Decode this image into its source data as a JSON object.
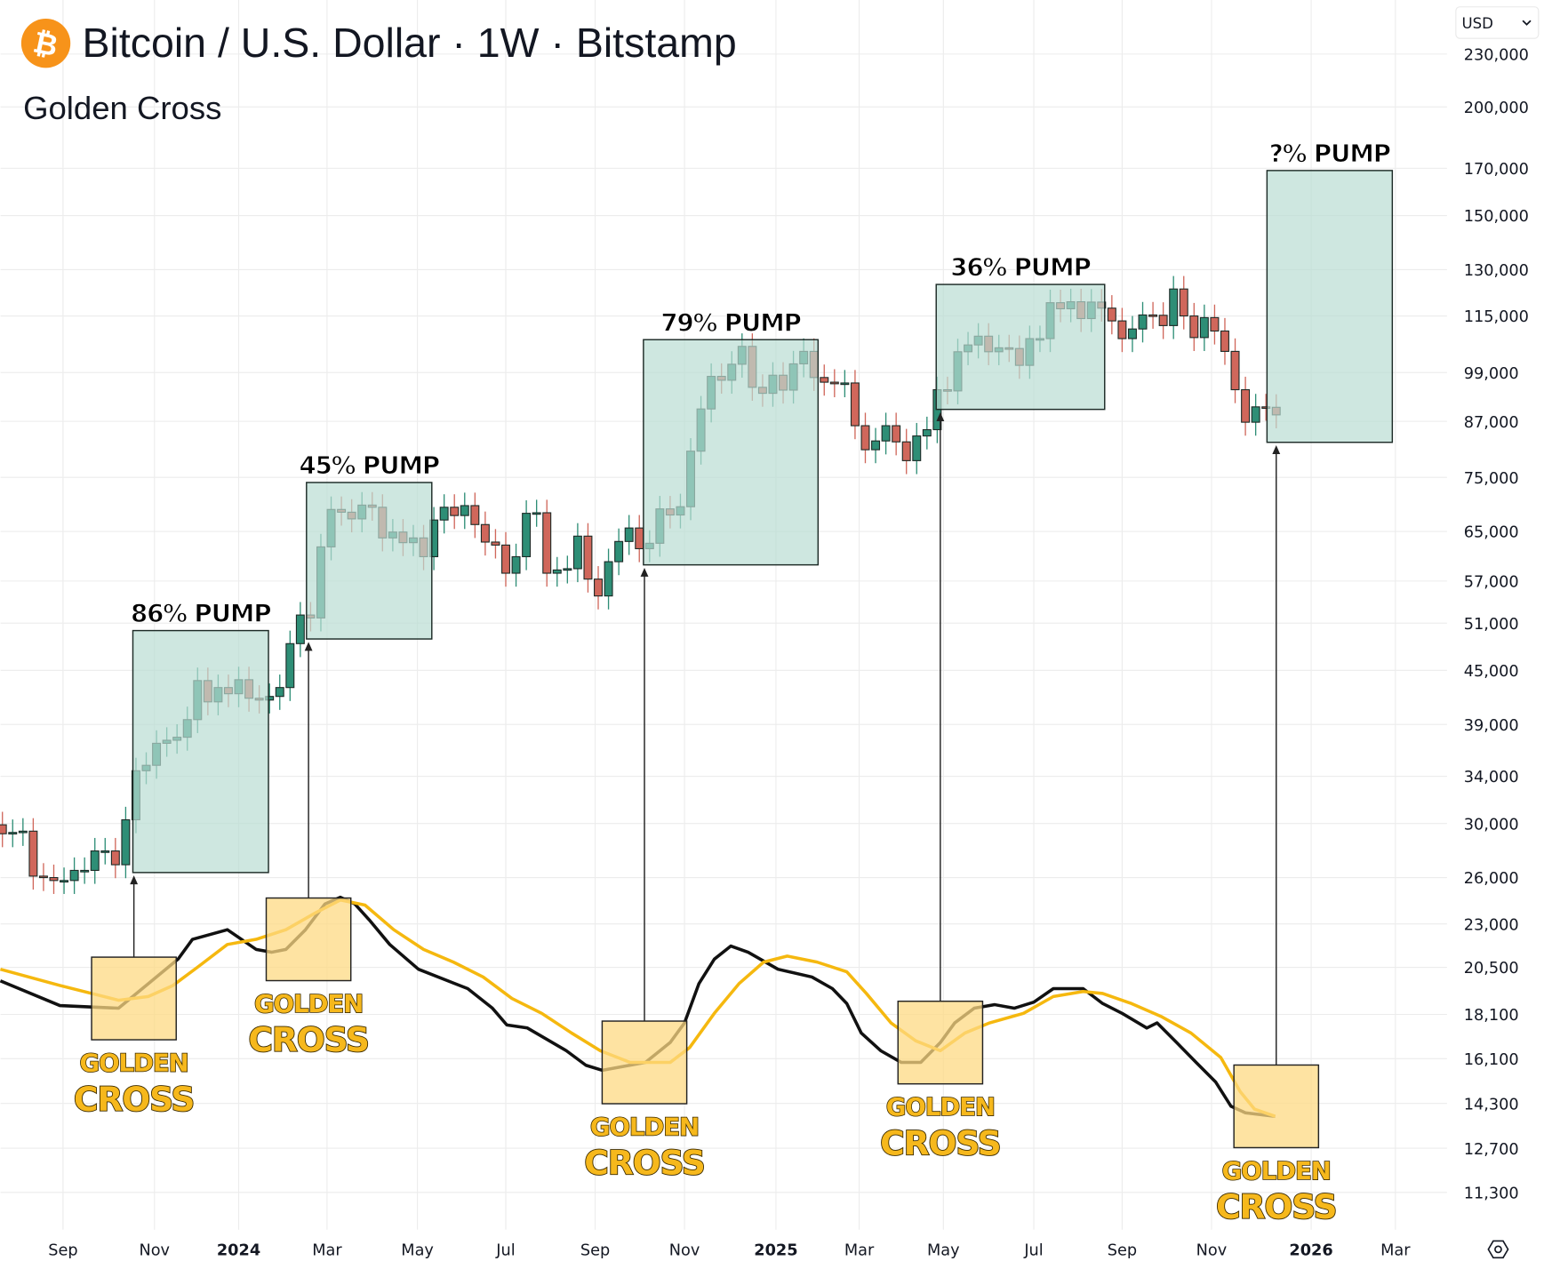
{
  "header": {
    "title": "Bitcoin / U.S. Dollar · 1W · Bitstamp",
    "subtitle": "Golden Cross",
    "logo_icon": "bitcoin-icon",
    "currency": "USD",
    "settings_icon": "gear-icon"
  },
  "colors": {
    "up": "#2e8e76",
    "down": "#d0675b",
    "ma_fast": "#111111",
    "ma_slow": "#f5b80f",
    "pump_box": "#b9ddd3",
    "cross_box": "#fdd983",
    "logo": "#f7931a"
  },
  "chart_data": {
    "type": "candlestick",
    "title": "Bitcoin / U.S. Dollar · 1W · Bitstamp",
    "subtitle": "Golden Cross",
    "y_scale": "log",
    "ylim": [
      10500,
      240000
    ],
    "x_unit": "weeks since 2024-01-01",
    "xlim": [
      -23.2,
      126
    ],
    "price_ticks": [
      "230,000",
      "200,000",
      "170,000",
      "150,000",
      "130,000",
      "115,000",
      "99,000",
      "87,000",
      "75,000",
      "65,000",
      "57,000",
      "51,000",
      "45,000",
      "39,000",
      "34,000",
      "30,000",
      "26,000",
      "23,000",
      "20,500",
      "18,100",
      "16,100",
      "14,300",
      "12,700",
      "11,300"
    ],
    "time_ticks": [
      {
        "label": "Sep",
        "week": -17.1,
        "year": false
      },
      {
        "label": "Nov",
        "week": -8.2,
        "year": false
      },
      {
        "label": "2024",
        "week": 0,
        "year": true
      },
      {
        "label": "Mar",
        "week": 8.6,
        "year": false
      },
      {
        "label": "May",
        "week": 17.4,
        "year": false
      },
      {
        "label": "Jul",
        "week": 26.0,
        "year": false
      },
      {
        "label": "Sep",
        "week": 34.7,
        "year": false
      },
      {
        "label": "Nov",
        "week": 43.4,
        "year": false
      },
      {
        "label": "2025",
        "week": 52.3,
        "year": true
      },
      {
        "label": "Mar",
        "week": 60.4,
        "year": false
      },
      {
        "label": "May",
        "week": 68.6,
        "year": false
      },
      {
        "label": "Jul",
        "week": 77.4,
        "year": false
      },
      {
        "label": "Sep",
        "week": 86.0,
        "year": false
      },
      {
        "label": "Nov",
        "week": 94.7,
        "year": false
      },
      {
        "label": "2026",
        "week": 104.4,
        "year": true
      },
      {
        "label": "Mar",
        "week": 112.6,
        "year": false
      }
    ],
    "candles": {
      "first_week": -23,
      "first_open": 29900,
      "closes": [
        29200,
        29300,
        29400,
        26100,
        26000,
        25800,
        25800,
        26500,
        26500,
        27900,
        27900,
        26900,
        30300,
        34500,
        35000,
        37100,
        37400,
        37700,
        39500,
        43800,
        41400,
        43000,
        42300,
        43900,
        41800,
        41600,
        42000,
        43000,
        48300,
        52100,
        51700,
        62400,
        68900,
        68400,
        67200,
        69700,
        69300,
        63900,
        64900,
        63100,
        63900,
        60800,
        67000,
        69300,
        67800,
        69600,
        66200,
        63200,
        62700,
        58200,
        60800,
        68200,
        68300,
        58200,
        58700,
        58900,
        64200,
        57300,
        54800,
        60000,
        63300,
        65600,
        62100,
        63000,
        69000,
        67900,
        69400,
        80400,
        89900,
        98000,
        97000,
        101200,
        106100,
        95200,
        93700,
        98300,
        94500,
        101300,
        104700,
        97700,
        96500,
        96100,
        96300,
        86000,
        80700,
        82600,
        86000,
        82400,
        78400,
        83700,
        85100,
        94600,
        94300,
        104600,
        106500,
        109000,
        104600,
        105700,
        105500,
        100900,
        108300,
        108300,
        119100,
        117200,
        119400,
        114200,
        119300,
        117400,
        113500,
        108300,
        111100,
        115300,
        115200,
        112100,
        123500,
        115000,
        108600,
        114500,
        110500,
        104700,
        94600,
        86800,
        90400,
        90300,
        88500
      ]
    },
    "series": [
      {
        "name": "Fast MA",
        "color": "#111111",
        "points": [
          [
            -23.2,
            19780
          ],
          [
            -17.4,
            18530
          ],
          [
            -11.7,
            18400
          ],
          [
            -8.8,
            19630
          ],
          [
            -5.9,
            20950
          ],
          [
            -4.5,
            22080
          ],
          [
            -1.1,
            22650
          ],
          [
            1.7,
            21500
          ],
          [
            3.2,
            21340
          ],
          [
            4.6,
            21500
          ],
          [
            6.5,
            22650
          ],
          [
            8.4,
            24250
          ],
          [
            9.9,
            24680
          ],
          [
            11.3,
            24250
          ],
          [
            12.7,
            23250
          ],
          [
            14.7,
            21780
          ],
          [
            17.5,
            20400
          ],
          [
            22.3,
            19380
          ],
          [
            24.7,
            18400
          ],
          [
            26.1,
            17600
          ],
          [
            28.1,
            17460
          ],
          [
            31.9,
            16440
          ],
          [
            33.8,
            15820
          ],
          [
            35.4,
            15610
          ],
          [
            39.6,
            15940
          ],
          [
            42.0,
            16800
          ],
          [
            43.4,
            17700
          ],
          [
            44.8,
            19630
          ],
          [
            46.3,
            20950
          ],
          [
            47.9,
            21690
          ],
          [
            49.6,
            21340
          ],
          [
            52.5,
            20400
          ],
          [
            55.8,
            19980
          ],
          [
            57.8,
            19380
          ],
          [
            59.2,
            18630
          ],
          [
            60.6,
            17230
          ],
          [
            62.5,
            16440
          ],
          [
            64.5,
            15940
          ],
          [
            66.4,
            15940
          ],
          [
            68.3,
            16800
          ],
          [
            69.7,
            17700
          ],
          [
            71.6,
            18400
          ],
          [
            73.6,
            18570
          ],
          [
            75.5,
            18400
          ],
          [
            77.4,
            18700
          ],
          [
            79.3,
            19380
          ],
          [
            82.2,
            19380
          ],
          [
            84.1,
            18630
          ],
          [
            86.0,
            18150
          ],
          [
            88.4,
            17460
          ],
          [
            89.4,
            17700
          ],
          [
            91.3,
            16800
          ],
          [
            93.2,
            15940
          ],
          [
            95.1,
            15140
          ],
          [
            96.6,
            14190
          ],
          [
            98.0,
            13950
          ],
          [
            100.9,
            13820
          ]
        ]
      },
      {
        "name": "Slow MA",
        "color": "#f5b80f",
        "points": [
          [
            -23.2,
            20400
          ],
          [
            -17.4,
            19540
          ],
          [
            -11.7,
            18790
          ],
          [
            -8.8,
            18980
          ],
          [
            -6.4,
            19540
          ],
          [
            -4.0,
            20510
          ],
          [
            -1.1,
            21780
          ],
          [
            1.7,
            22080
          ],
          [
            4.6,
            22650
          ],
          [
            7.5,
            23690
          ],
          [
            9.9,
            24500
          ],
          [
            12.3,
            24170
          ],
          [
            15.1,
            22650
          ],
          [
            18.0,
            21500
          ],
          [
            20.9,
            20790
          ],
          [
            23.8,
            19980
          ],
          [
            26.6,
            18880
          ],
          [
            29.5,
            18150
          ],
          [
            32.4,
            17230
          ],
          [
            35.2,
            16440
          ],
          [
            38.1,
            15940
          ],
          [
            42.0,
            15940
          ],
          [
            43.9,
            16580
          ],
          [
            46.3,
            18150
          ],
          [
            48.7,
            19630
          ],
          [
            51.1,
            20790
          ],
          [
            53.4,
            21120
          ],
          [
            56.3,
            20790
          ],
          [
            59.2,
            20260
          ],
          [
            61.1,
            19130
          ],
          [
            63.5,
            17700
          ],
          [
            65.9,
            16880
          ],
          [
            68.3,
            16440
          ],
          [
            70.7,
            17230
          ],
          [
            73.1,
            17700
          ],
          [
            76.4,
            18150
          ],
          [
            79.3,
            18980
          ],
          [
            82.2,
            19230
          ],
          [
            84.1,
            19130
          ],
          [
            86.9,
            18630
          ],
          [
            89.8,
            18000
          ],
          [
            92.7,
            17230
          ],
          [
            95.6,
            16150
          ],
          [
            97.5,
            14750
          ],
          [
            98.9,
            14080
          ],
          [
            100.9,
            13820
          ]
        ]
      }
    ],
    "pump_boxes": [
      {
        "label": "86% PUMP",
        "week_start": -10.3,
        "week_end": 2.9,
        "price_low": 26350,
        "price_high": 50000
      },
      {
        "label": "45% PUMP",
        "week_start": 6.6,
        "week_end": 18.8,
        "price_low": 48900,
        "price_high": 74000
      },
      {
        "label": "79% PUMP",
        "week_start": 39.4,
        "week_end": 56.4,
        "price_low": 59500,
        "price_high": 108000
      },
      {
        "label": "36% PUMP",
        "week_start": 67.9,
        "week_end": 84.3,
        "price_low": 89800,
        "price_high": 125000
      },
      {
        "label": "?% PUMP",
        "week_start": 100.1,
        "week_end": 112.3,
        "price_low": 82300,
        "price_high": 169000
      }
    ],
    "golden_crosses": [
      {
        "line1": "GOLDEN",
        "line2": "CROSS",
        "week": -10.2,
        "price": 18880
      },
      {
        "line1": "GOLDEN",
        "line2": "CROSS",
        "week": 6.8,
        "price": 22080
      },
      {
        "line1": "GOLDEN",
        "line2": "CROSS",
        "week": 39.5,
        "price": 15940
      },
      {
        "line1": "GOLDEN",
        "line2": "CROSS",
        "week": 68.3,
        "price": 16800
      },
      {
        "line1": "GOLDEN",
        "line2": "CROSS",
        "week": 101.0,
        "price": 14190
      }
    ]
  }
}
